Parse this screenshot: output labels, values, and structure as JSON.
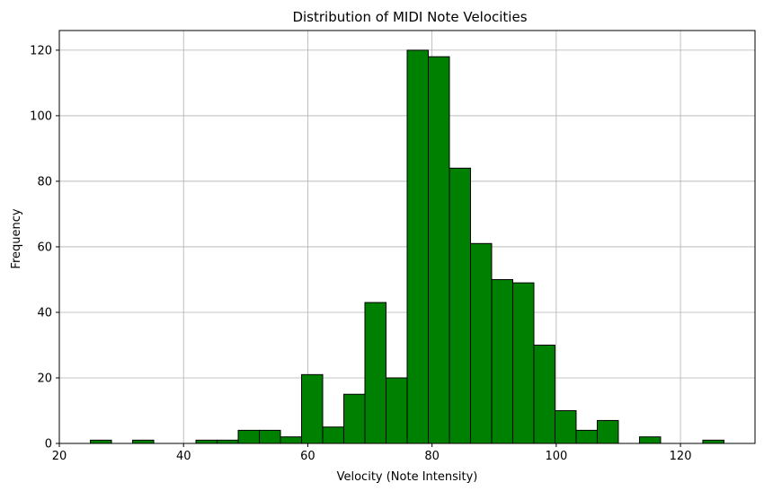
{
  "chart_data": {
    "type": "bar",
    "title": "Distribution of MIDI Note Velocities",
    "xlabel": "Velocity (Note Intensity)",
    "ylabel": "Frequency",
    "xlim": [
      20,
      132
    ],
    "ylim": [
      0,
      126
    ],
    "xticks": [
      20,
      40,
      60,
      80,
      100,
      120
    ],
    "yticks": [
      0,
      20,
      40,
      60,
      80,
      100,
      120
    ],
    "grid": true,
    "bar_color": "#008000",
    "edge_color": "#000000",
    "bins": [
      {
        "x0": 25.0,
        "x1": 28.4,
        "value": 1
      },
      {
        "x0": 28.4,
        "x1": 31.8,
        "value": 0
      },
      {
        "x0": 31.8,
        "x1": 35.2,
        "value": 1
      },
      {
        "x0": 35.2,
        "x1": 38.6,
        "value": 0
      },
      {
        "x0": 38.6,
        "x1": 42.0,
        "value": 0
      },
      {
        "x0": 42.0,
        "x1": 45.4,
        "value": 1
      },
      {
        "x0": 45.4,
        "x1": 48.8,
        "value": 1
      },
      {
        "x0": 48.8,
        "x1": 52.2,
        "value": 4
      },
      {
        "x0": 52.2,
        "x1": 55.6,
        "value": 4
      },
      {
        "x0": 55.6,
        "x1": 59.0,
        "value": 2
      },
      {
        "x0": 59.0,
        "x1": 62.4,
        "value": 21
      },
      {
        "x0": 62.4,
        "x1": 65.8,
        "value": 5
      },
      {
        "x0": 65.8,
        "x1": 69.2,
        "value": 15
      },
      {
        "x0": 69.2,
        "x1": 72.6,
        "value": 43
      },
      {
        "x0": 72.6,
        "x1": 76.0,
        "value": 20
      },
      {
        "x0": 76.0,
        "x1": 79.4,
        "value": 120
      },
      {
        "x0": 79.4,
        "x1": 82.8,
        "value": 118
      },
      {
        "x0": 82.8,
        "x1": 86.2,
        "value": 84
      },
      {
        "x0": 86.2,
        "x1": 89.6,
        "value": 61
      },
      {
        "x0": 89.6,
        "x1": 93.0,
        "value": 50
      },
      {
        "x0": 93.0,
        "x1": 96.4,
        "value": 49
      },
      {
        "x0": 96.4,
        "x1": 99.8,
        "value": 30
      },
      {
        "x0": 99.8,
        "x1": 103.2,
        "value": 10
      },
      {
        "x0": 103.2,
        "x1": 106.6,
        "value": 4
      },
      {
        "x0": 106.6,
        "x1": 110.0,
        "value": 7
      },
      {
        "x0": 110.0,
        "x1": 113.4,
        "value": 0
      },
      {
        "x0": 113.4,
        "x1": 116.8,
        "value": 2
      },
      {
        "x0": 116.8,
        "x1": 120.2,
        "value": 0
      },
      {
        "x0": 120.2,
        "x1": 123.6,
        "value": 0
      },
      {
        "x0": 123.6,
        "x1": 127.0,
        "value": 1
      }
    ]
  }
}
